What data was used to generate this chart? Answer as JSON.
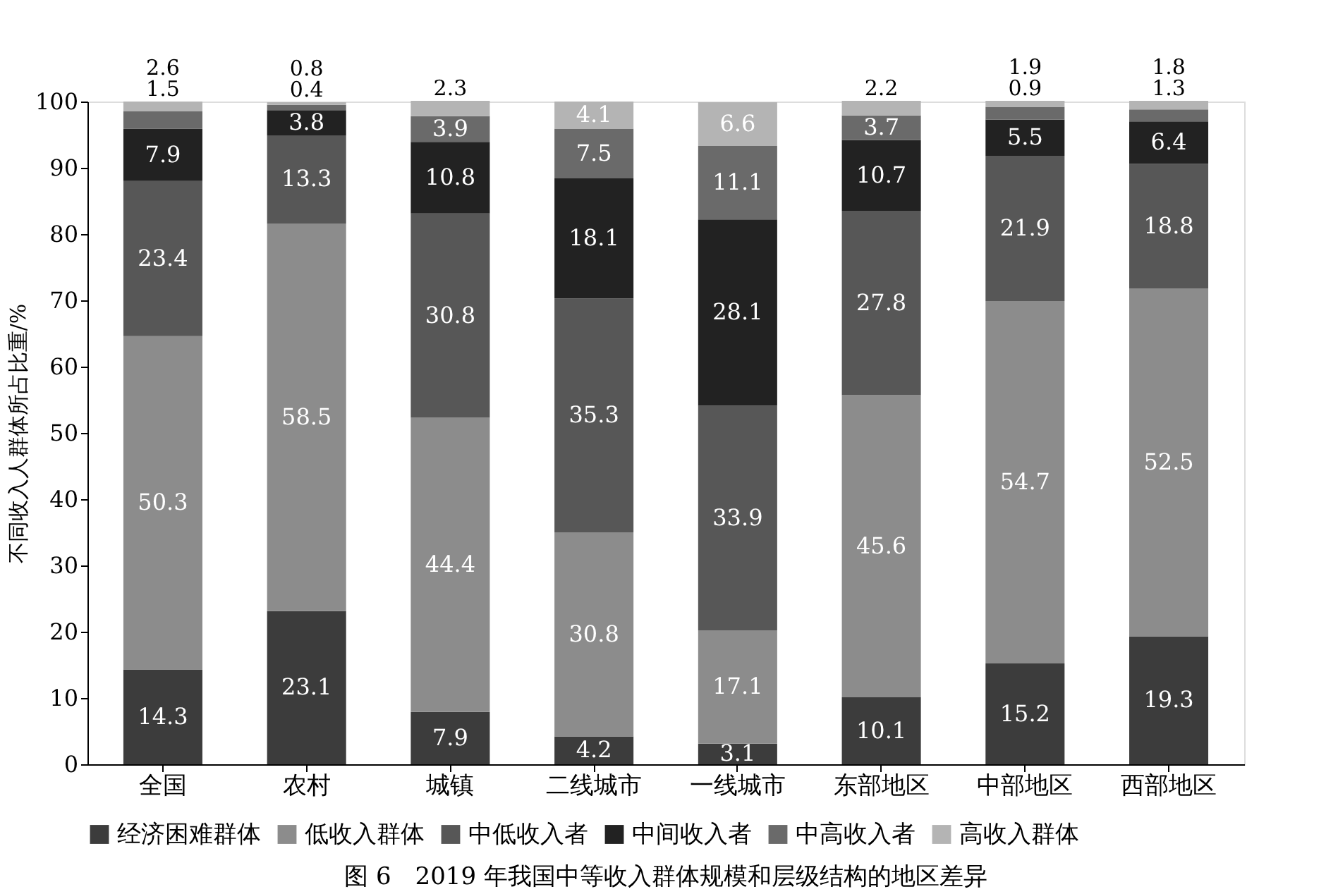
{
  "chart_data": {
    "type": "bar",
    "stacked": true,
    "title": "图 6　2019 年我国中等收入群体规模和层级结构的地区差异",
    "ylabel": "不同收入人群体所占比重/%",
    "categories": [
      "全国",
      "农村",
      "城镇",
      "二线城市",
      "一线城市",
      "东部地区",
      "中部地区",
      "西部地区"
    ],
    "series": [
      {
        "name": "经济困难群体",
        "color": "#3c3c3c",
        "values": [
          14.3,
          23.1,
          7.9,
          4.2,
          3.1,
          10.1,
          15.2,
          19.3
        ]
      },
      {
        "name": "低收入群体",
        "color": "#8c8c8c",
        "values": [
          50.3,
          58.5,
          44.4,
          30.8,
          17.1,
          45.6,
          54.7,
          52.5
        ]
      },
      {
        "name": "中低收入者",
        "color": "#575757",
        "values": [
          23.4,
          13.3,
          30.8,
          35.3,
          33.9,
          27.8,
          21.9,
          18.8
        ]
      },
      {
        "name": "中间收入者",
        "color": "#222222",
        "values": [
          7.9,
          3.8,
          10.8,
          18.1,
          28.1,
          10.7,
          5.5,
          6.4
        ]
      },
      {
        "name": "中高收入者",
        "color": "#6a6a6a",
        "values": [
          2.6,
          0.8,
          3.9,
          7.5,
          11.1,
          3.7,
          1.9,
          1.8
        ]
      },
      {
        "name": "高收入群体",
        "color": "#b4b4b4",
        "values": [
          1.5,
          0.4,
          2.3,
          4.1,
          6.6,
          2.2,
          0.9,
          1.3
        ]
      }
    ],
    "ylim": [
      0,
      100
    ],
    "yticks": [
      0,
      10,
      20,
      30,
      40,
      50,
      60,
      70,
      80,
      90,
      100
    ],
    "grid": false,
    "legend": "bottom",
    "data_labels": true
  }
}
